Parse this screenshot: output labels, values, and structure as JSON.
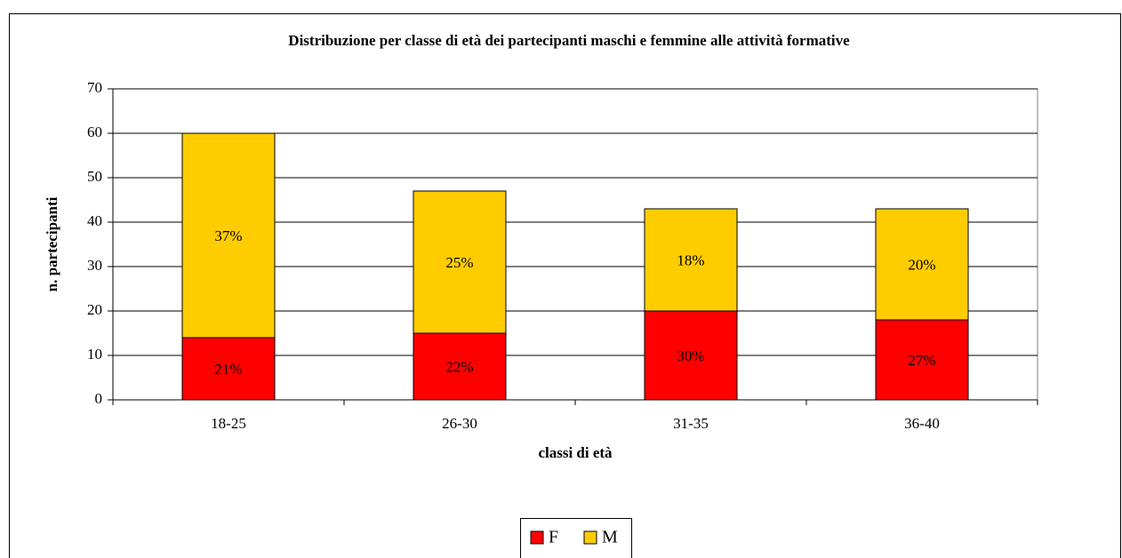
{
  "chart_data": {
    "type": "stacked_bar",
    "title": "Distribuzione per classe di età dei partecipanti maschi e femmine alle attività formative",
    "x_label": "classi di età",
    "y_label": "n. partecipanti",
    "categories": [
      "18-25",
      "26-30",
      "31-35",
      "36-40"
    ],
    "series": [
      {
        "name": "F",
        "color": "#ff0000",
        "values": [
          14,
          15,
          20,
          18
        ],
        "labels": [
          "21%",
          "22%",
          "30%",
          "27%"
        ]
      },
      {
        "name": "M",
        "color": "#ffcc00",
        "values": [
          46,
          32,
          23,
          25
        ],
        "labels": [
          "37%",
          "25%",
          "18%",
          "20%"
        ]
      }
    ],
    "ylim": [
      0,
      70
    ],
    "yticks": [
      0,
      10,
      20,
      30,
      40,
      50,
      60,
      70
    ],
    "grid": true,
    "legend": "bottom"
  }
}
